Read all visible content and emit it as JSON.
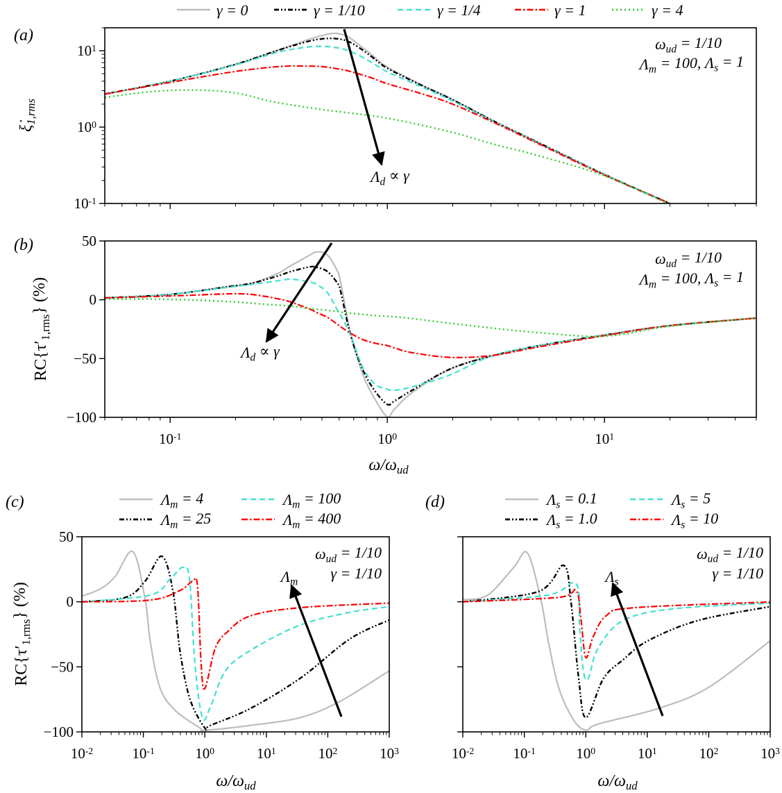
{
  "colors": {
    "gray": "#bdbdbd",
    "black": "#000000",
    "cyan": "#40e0d0",
    "red": "#ff0000",
    "green": "#2ecc2e"
  },
  "top_legend": [
    {
      "label": "γ = 0",
      "style": "solid",
      "color": "#bdbdbd"
    },
    {
      "label": "γ = 1/10",
      "style": "dash-dot-dot",
      "color": "#000000"
    },
    {
      "label": "γ = 1/4",
      "style": "dashed",
      "color": "#40e0d0"
    },
    {
      "label": "γ = 1",
      "style": "dash-dot",
      "color": "#ff0000"
    },
    {
      "label": "γ = 4",
      "style": "dotted",
      "color": "#2ecc2e"
    }
  ],
  "chart_data": [
    {
      "panel": "(a)",
      "type": "line",
      "xscale": "log",
      "yscale": "log",
      "xlim": [
        0.05,
        50
      ],
      "ylim": [
        0.1,
        20
      ],
      "ylabel": "ξ̇_{1,rms}",
      "xlabel": "",
      "xticks": [
        0.1,
        1,
        10
      ],
      "xtick_labels": [],
      "yticks": [
        0.1,
        1,
        10
      ],
      "ytick_labels": [
        "10^{-1}",
        "10^{0}",
        "10^{1}"
      ],
      "annotations": [
        "ω_{ud} = 1/10",
        "Λ_{m} = 100, Λ_{s} = 1",
        "Λ_{d} ∝ γ"
      ],
      "series": [
        {
          "name": "γ = 0",
          "style": "solid",
          "color": "#bdbdbd",
          "x": [
            0.05,
            0.1,
            0.195,
            0.315,
            0.433,
            0.5,
            0.57,
            0.65,
            0.734,
            0.85,
            1,
            1.46,
            2,
            3.2,
            5,
            10,
            20
          ],
          "y": [
            2.72,
            4.0,
            6.5,
            10.2,
            14,
            15.8,
            16.9,
            15.6,
            12.2,
            8.8,
            6.1,
            3.5,
            2.3,
            1.14,
            0.62,
            0.24,
            0.1
          ]
        },
        {
          "name": "γ = 1/10",
          "style": "dash-dot-dot",
          "color": "#000000",
          "x": [
            0.05,
            0.1,
            0.195,
            0.315,
            0.433,
            0.5,
            0.57,
            0.65,
            0.734,
            0.85,
            1,
            1.46,
            2,
            3.2,
            5,
            10,
            20
          ],
          "y": [
            2.72,
            4.0,
            6.5,
            10.2,
            13.3,
            14.3,
            14.5,
            13.5,
            11.2,
            8.3,
            5.9,
            3.45,
            2.28,
            1.14,
            0.62,
            0.24,
            0.1
          ]
        },
        {
          "name": "γ = 1/4",
          "style": "dashed",
          "color": "#40e0d0",
          "x": [
            0.05,
            0.1,
            0.195,
            0.315,
            0.433,
            0.5,
            0.57,
            0.65,
            0.734,
            0.85,
            1,
            1.46,
            2,
            3.2,
            5,
            10,
            20
          ],
          "y": [
            2.72,
            4.0,
            6.4,
            9.6,
            11.2,
            11.4,
            11.1,
            10.2,
            8.8,
            7,
            5.3,
            3.3,
            2.2,
            1.12,
            0.61,
            0.24,
            0.1
          ]
        },
        {
          "name": "γ = 1",
          "style": "dash-dot",
          "color": "#ff0000",
          "x": [
            0.05,
            0.1,
            0.195,
            0.315,
            0.433,
            0.5,
            0.57,
            0.65,
            0.734,
            0.85,
            1,
            1.46,
            2,
            3.2,
            5,
            10,
            20
          ],
          "y": [
            2.7,
            3.85,
            5.3,
            6.2,
            6.3,
            6.2,
            5.9,
            5.5,
            5.0,
            4.4,
            3.7,
            2.7,
            2.0,
            1.1,
            0.6,
            0.235,
            0.1
          ]
        },
        {
          "name": "γ = 4",
          "style": "dotted",
          "color": "#2ecc2e",
          "x": [
            0.05,
            0.08,
            0.128,
            0.2,
            0.3,
            0.5,
            1,
            2,
            3,
            5,
            10,
            19.5
          ],
          "y": [
            2.45,
            2.9,
            3.06,
            2.8,
            2.14,
            1.7,
            1.31,
            0.85,
            0.61,
            0.42,
            0.23,
            0.1
          ]
        }
      ]
    },
    {
      "panel": "(b)",
      "type": "line",
      "xscale": "log",
      "yscale": "linear",
      "xlim": [
        0.05,
        50
      ],
      "ylim": [
        -100,
        50
      ],
      "ylabel": "RC{τ′_{1,rms}} (%)",
      "xlabel": "ω/ω_{ud}",
      "xticks": [
        0.1,
        1,
        10
      ],
      "xtick_labels": [
        "10^{-1}",
        "10^{0}",
        "10^{1}"
      ],
      "yticks": [
        -100,
        -50,
        0,
        50
      ],
      "ytick_labels": [
        "−100",
        "−50",
        "0",
        "50"
      ],
      "annotations": [
        "ω_{ud} = 1/10",
        "Λ_{m} = 100, Λ_{s} = 1",
        "Λ_{d} ∝ γ"
      ],
      "series": [
        {
          "name": "γ = 0",
          "style": "solid",
          "color": "#bdbdbd",
          "x": [
            0.05,
            0.1,
            0.183,
            0.237,
            0.31,
            0.36,
            0.44,
            0.475,
            0.53,
            0.59,
            0.61,
            0.677,
            0.773,
            0.88,
            1,
            1.08,
            1.3,
            1.94,
            3,
            5,
            10,
            20,
            50
          ],
          "y": [
            1.6,
            4.5,
            11,
            14,
            22,
            29,
            38,
            40.7,
            38,
            24,
            14.6,
            -28.5,
            -64,
            -85,
            -99.5,
            -93,
            -79,
            -59,
            -48,
            -39,
            -30,
            -22,
            -15.6
          ]
        },
        {
          "name": "γ = 1/10",
          "style": "dash-dot-dot",
          "color": "#000000",
          "x": [
            0.05,
            0.1,
            0.183,
            0.237,
            0.31,
            0.36,
            0.44,
            0.475,
            0.53,
            0.59,
            0.61,
            0.677,
            0.773,
            0.88,
            1,
            1.08,
            1.3,
            1.94,
            3,
            5,
            10,
            20,
            50
          ],
          "y": [
            1.6,
            4.5,
            11,
            14,
            20,
            24,
            28,
            27.5,
            24,
            14,
            6.9,
            -30,
            -60,
            -78,
            -89,
            -86,
            -77,
            -59,
            -48,
            -39,
            -30,
            -22,
            -15.6
          ]
        },
        {
          "name": "γ = 1/4",
          "style": "dashed",
          "color": "#40e0d0",
          "x": [
            0.05,
            0.1,
            0.183,
            0.237,
            0.31,
            0.36,
            0.44,
            0.475,
            0.53,
            0.59,
            0.61,
            0.677,
            0.773,
            0.88,
            1,
            1.08,
            1.3,
            1.94,
            3,
            5,
            10,
            20,
            50
          ],
          "y": [
            1.6,
            4.5,
            10.5,
            13,
            16,
            17.5,
            15,
            12.8,
            6,
            -9,
            -13,
            -30,
            -58,
            -72,
            -76,
            -77,
            -74,
            -64,
            -48,
            -39,
            -30,
            -22,
            -15.6
          ]
        },
        {
          "name": "γ = 1",
          "style": "dash-dot",
          "color": "#ff0000",
          "x": [
            0.05,
            0.1,
            0.183,
            0.237,
            0.31,
            0.36,
            0.44,
            0.475,
            0.53,
            0.59,
            0.61,
            0.677,
            0.773,
            0.88,
            1,
            1.08,
            1.3,
            1.94,
            3,
            5,
            10,
            20,
            50
          ],
          "y": [
            1.6,
            3.2,
            5,
            4.5,
            1,
            -2,
            -8,
            -11,
            -15,
            -21,
            -23,
            -28.5,
            -34,
            -37,
            -39,
            -41,
            -45,
            -49,
            -47.5,
            -40,
            -30.5,
            -22,
            -15.6
          ]
        },
        {
          "name": "γ = 4",
          "style": "dotted",
          "color": "#2ecc2e",
          "x": [
            0.05,
            0.1,
            0.183,
            0.237,
            0.31,
            0.36,
            0.44,
            0.475,
            0.53,
            0.59,
            0.61,
            0.677,
            0.773,
            0.88,
            1,
            1.08,
            1.3,
            1.94,
            3,
            5,
            10,
            20,
            50
          ],
          "y": [
            0.6,
            0.3,
            -1.5,
            -3,
            -4.5,
            -5.5,
            -7.5,
            -8,
            -9,
            -10,
            -10.5,
            -11.5,
            -12.5,
            -13.5,
            -14,
            -14.5,
            -16,
            -20,
            -24,
            -28,
            -31,
            -22.5,
            -15.6
          ]
        }
      ]
    },
    {
      "panel": "(c)",
      "type": "line",
      "xscale": "log",
      "yscale": "linear",
      "xlim": [
        0.01,
        1000
      ],
      "ylim": [
        -100,
        50
      ],
      "ylabel": "RC{τ′_{1,rms}} (%)",
      "xlabel": "ω/ω_{ud}",
      "xticks": [
        0.01,
        0.1,
        1,
        10,
        100,
        1000
      ],
      "xtick_labels": [
        "10^{-2}",
        "10^{-1}",
        "10^{0}",
        "10^{1}",
        "10^{2}",
        "10^{3}"
      ],
      "yticks": [
        -100,
        -50,
        0,
        50
      ],
      "ytick_labels": [
        "−100",
        "−50",
        "0",
        "50"
      ],
      "annotations": [
        "ω_{ud} = 1/10",
        "γ = 1/10",
        "Λ_{m}"
      ],
      "legend": [
        "Λ_{m} = 4",
        "Λ_{m} = 100",
        "Λ_{m} = 25",
        "Λ_{m} = 400"
      ],
      "series": [
        {
          "name": "Λ_{m} = 4",
          "style": "solid",
          "color": "#bdbdbd",
          "x": [
            0.01,
            0.02,
            0.0347,
            0.0676,
            0.107,
            0.129,
            0.186,
            0.331,
            0.832,
            1,
            5.5,
            35.5,
            158,
            1000
          ],
          "y": [
            4.3,
            10,
            19.4,
            38.6,
            1.7,
            -30,
            -66,
            -83.6,
            -97,
            -98.7,
            -95,
            -89,
            -76.5,
            -53
          ]
        },
        {
          "name": "Λ_{m} = 25",
          "style": "dash-dot-dot",
          "color": "#000000",
          "x": [
            0.01,
            0.0513,
            0.107,
            0.2,
            0.302,
            0.398,
            0.575,
            1,
            1.23,
            5.5,
            35.5,
            229,
            1000
          ],
          "y": [
            0,
            3.4,
            15.9,
            35,
            8.8,
            -39,
            -75,
            -97,
            -95,
            -82,
            -58.8,
            -28.5,
            -14
          ]
        },
        {
          "name": "Λ_{m} = 100",
          "style": "dashed",
          "color": "#40e0d0",
          "x": [
            0.01,
            0.129,
            0.275,
            0.437,
            0.562,
            0.692,
            0.912,
            1.23,
            2.14,
            5.5,
            35.5,
            229,
            1000
          ],
          "y": [
            0,
            5.2,
            17.7,
            26.5,
            17.7,
            -48,
            -89,
            -81,
            -53.4,
            -37.4,
            -17.9,
            -8.1,
            -3.7
          ]
        },
        {
          "name": "Λ_{m} = 400",
          "style": "dash-dot",
          "color": "#ff0000",
          "x": [
            0.01,
            0.129,
            0.398,
            0.631,
            0.759,
            0.871,
            1,
            1.48,
            2.34,
            5.5,
            35.5,
            1000
          ],
          "y": [
            0,
            1.3,
            8.8,
            15.9,
            12.3,
            -48,
            -66.7,
            -35.6,
            -23,
            -10.8,
            -4.5,
            -1
          ]
        }
      ]
    },
    {
      "panel": "(d)",
      "type": "line",
      "xscale": "log",
      "yscale": "linear",
      "xlim": [
        0.01,
        1000
      ],
      "ylim": [
        -100,
        50
      ],
      "ylabel": "",
      "xlabel": "ω/ω_{ud}",
      "xticks": [
        0.01,
        0.1,
        1,
        10,
        100,
        1000
      ],
      "xtick_labels": [
        "10^{-2}",
        "10^{-1}",
        "10^{0}",
        "10^{1}",
        "10^{2}",
        "10^{3}"
      ],
      "yticks": [
        -100,
        -50,
        0,
        50
      ],
      "ytick_labels": [],
      "annotations": [
        "ω_{ud} = 1/10",
        "γ = 1/10",
        "Λ_{s}"
      ],
      "legend": [
        "Λ_{s} = 0.1",
        "Λ_{s} = 5",
        "Λ_{s} = 1.0",
        "Λ_{s} = 10"
      ],
      "series": [
        {
          "name": "Λ_{s} = 0.1",
          "style": "solid",
          "color": "#bdbdbd",
          "x": [
            0.01,
            0.0251,
            0.0676,
            0.112,
            0.186,
            0.245,
            0.363,
            0.631,
            1,
            1.585,
            15.1,
            97.7,
            1000
          ],
          "y": [
            1.7,
            5,
            26.5,
            37.6,
            1.7,
            -30,
            -66,
            -90.7,
            -98.7,
            -94,
            -82,
            -66,
            -30
          ]
        },
        {
          "name": "Λ_{s} = 1.0",
          "style": "dash-dot-dot",
          "color": "#000000",
          "x": [
            0.01,
            0.17,
            0.437,
            0.575,
            0.759,
            1,
            1.95,
            4.07,
            10.2,
            67.6,
            1000
          ],
          "y": [
            0,
            7.9,
            28,
            -0.1,
            -57,
            -89,
            -58.8,
            -44.5,
            -30,
            -14.3,
            -3.7
          ]
        },
        {
          "name": "Λ_{s} = 5",
          "style": "dashed",
          "color": "#40e0d0",
          "x": [
            0.01,
            0.245,
            0.692,
            0.794,
            0.912,
            1.1,
            1.585,
            4.07,
            26.3,
            1000
          ],
          "y": [
            0,
            5.2,
            14,
            -19.7,
            -53,
            -58.8,
            -35.6,
            -14.3,
            -5.4,
            -1
          ]
        },
        {
          "name": "Λ_{s} = 10",
          "style": "dash-dot",
          "color": "#ff0000",
          "x": [
            0.01,
            0.363,
            0.692,
            0.832,
            1,
            1.32,
            2.14,
            5.89,
            1000
          ],
          "y": [
            0,
            3.4,
            8.8,
            -12.6,
            -42.8,
            -26.8,
            -10.8,
            -4.6,
            -0.1
          ]
        }
      ]
    }
  ]
}
